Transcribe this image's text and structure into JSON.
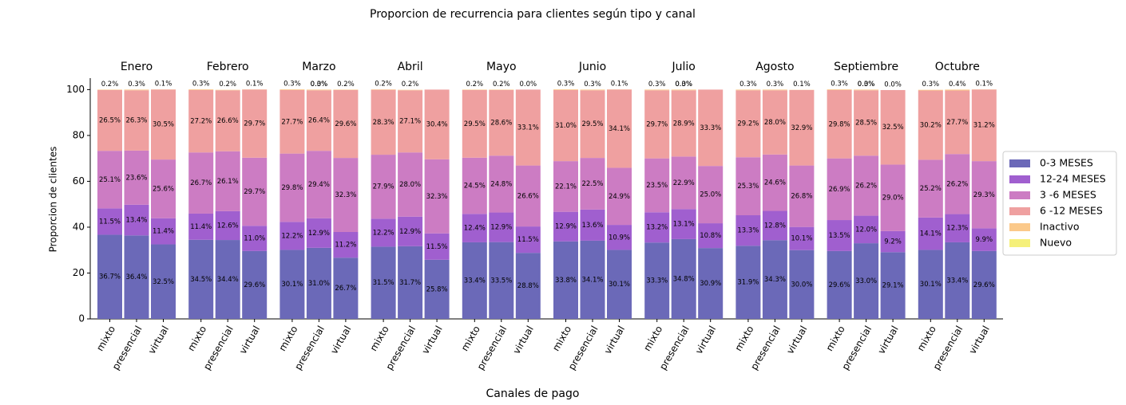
{
  "chart_data": {
    "type": "stacked_bar",
    "title": "Proporcion de recurrencia para clientes según tipo y canal",
    "x_label": "Canales de pago",
    "y_label": "Proporcion de clientes",
    "groups": [
      "Enero",
      "Febrero",
      "Marzo",
      "Abril",
      "Mayo",
      "Junio",
      "Julio",
      "Agosto",
      "Septiembre",
      "Octubre"
    ],
    "categories": [
      "mixto",
      "presencial",
      "virtual"
    ],
    "ylim": [
      0,
      105
    ],
    "yticks": [
      0,
      20,
      40,
      60,
      80,
      100
    ],
    "legend": "right",
    "series": [
      {
        "name": "0-3 MESES",
        "color": "#6b69b8",
        "values": [
          [
            36.7,
            36.4,
            32.5
          ],
          [
            34.5,
            34.4,
            29.6
          ],
          [
            30.1,
            31.0,
            26.7
          ],
          [
            31.5,
            31.7,
            25.8
          ],
          [
            33.4,
            33.5,
            28.8
          ],
          [
            33.8,
            34.1,
            30.1
          ],
          [
            33.3,
            34.8,
            30.9
          ],
          [
            31.9,
            34.3,
            30.0
          ],
          [
            29.6,
            33.0,
            29.1
          ],
          [
            30.1,
            33.4,
            29.6
          ]
        ],
        "value_labels": [
          [
            "36.7%",
            "36.4%",
            "32.5%"
          ],
          [
            "34.5%",
            "34.4%",
            "29.6%"
          ],
          [
            "30.1%",
            "31.0%",
            "26.7%"
          ],
          [
            "31.5%",
            "31.7%",
            "25.8%"
          ],
          [
            "33.4%",
            "33.5%",
            "28.8%"
          ],
          [
            "33.8%",
            "34.1%",
            "30.1%"
          ],
          [
            "33.3%",
            "34.8%",
            "30.9%"
          ],
          [
            "31.9%",
            "34.3%",
            "30.0%"
          ],
          [
            "29.6%",
            "33.0%",
            "29.1%"
          ],
          [
            "30.1%",
            "33.4%",
            "29.6%"
          ]
        ]
      },
      {
        "name": "12-24 MESES",
        "color": "#a05fcf",
        "values": [
          [
            11.5,
            13.4,
            11.4
          ],
          [
            11.4,
            12.6,
            11.0
          ],
          [
            12.2,
            12.9,
            11.2
          ],
          [
            12.2,
            12.9,
            11.5
          ],
          [
            12.4,
            12.9,
            11.5
          ],
          [
            12.9,
            13.6,
            10.9
          ],
          [
            13.2,
            13.1,
            10.8
          ],
          [
            13.3,
            12.8,
            10.1
          ],
          [
            13.5,
            12.0,
            9.2
          ],
          [
            14.1,
            12.3,
            9.9
          ]
        ],
        "value_labels": [
          [
            "11.5%",
            "13.4%",
            "11.4%"
          ],
          [
            "11.4%",
            "12.6%",
            "11.0%"
          ],
          [
            "12.2%",
            "12.9%",
            "11.2%"
          ],
          [
            "12.2%",
            "12.9%",
            "11.5%"
          ],
          [
            "12.4%",
            "12.9%",
            "11.5%"
          ],
          [
            "12.9%",
            "13.6%",
            "10.9%"
          ],
          [
            "13.2%",
            "13.1%",
            "10.8%"
          ],
          [
            "13.3%",
            "12.8%",
            "10.1%"
          ],
          [
            "13.5%",
            "12.0%",
            "9.2%"
          ],
          [
            "14.1%",
            "12.3%",
            "9.9%"
          ]
        ]
      },
      {
        "name": "3 -6 MESES",
        "color": "#cc7cc3",
        "values": [
          [
            25.1,
            23.6,
            25.6
          ],
          [
            26.7,
            26.1,
            29.7
          ],
          [
            29.8,
            29.4,
            32.3
          ],
          [
            27.9,
            28.0,
            32.3
          ],
          [
            24.5,
            24.8,
            26.6
          ],
          [
            22.1,
            22.5,
            24.9
          ],
          [
            23.5,
            22.9,
            25.0
          ],
          [
            25.3,
            24.6,
            26.8
          ],
          [
            26.9,
            26.2,
            29.0
          ],
          [
            25.2,
            26.2,
            29.3
          ]
        ],
        "value_labels": [
          [
            "25.1%",
            "23.6%",
            "25.6%"
          ],
          [
            "26.7%",
            "26.1%",
            "29.7%"
          ],
          [
            "29.8%",
            "29.4%",
            "32.3%"
          ],
          [
            "27.9%",
            "28.0%",
            "32.3%"
          ],
          [
            "24.5%",
            "24.8%",
            "26.6%"
          ],
          [
            "22.1%",
            "22.5%",
            "24.9%"
          ],
          [
            "23.5%",
            "22.9%",
            "25.0%"
          ],
          [
            "25.3%",
            "24.6%",
            "26.8%"
          ],
          [
            "26.9%",
            "26.2%",
            "29.0%"
          ],
          [
            "25.2%",
            "26.2%",
            "29.3%"
          ]
        ]
      },
      {
        "name": "6 -12 MESES",
        "color": "#efa0a0",
        "values": [
          [
            26.5,
            26.3,
            30.5
          ],
          [
            27.2,
            26.6,
            29.7
          ],
          [
            27.7,
            26.4,
            29.6
          ],
          [
            28.3,
            27.1,
            30.4
          ],
          [
            29.5,
            28.6,
            33.1
          ],
          [
            31.0,
            29.5,
            34.1
          ],
          [
            29.7,
            28.9,
            33.3
          ],
          [
            29.2,
            28.0,
            32.9
          ],
          [
            29.8,
            28.5,
            32.5
          ],
          [
            30.2,
            27.7,
            31.2
          ]
        ],
        "value_labels": [
          [
            "26.5%",
            "26.3%",
            "30.5%"
          ],
          [
            "27.2%",
            "26.6%",
            "29.7%"
          ],
          [
            "27.7%",
            "26.4%",
            "29.6%"
          ],
          [
            "28.3%",
            "27.1%",
            "30.4%"
          ],
          [
            "29.5%",
            "28.6%",
            "33.1%"
          ],
          [
            "31.0%",
            "29.5%",
            "34.1%"
          ],
          [
            "29.7%",
            "28.9%",
            "33.3%"
          ],
          [
            "29.2%",
            "28.0%",
            "32.9%"
          ],
          [
            "29.8%",
            "28.5%",
            "32.5%"
          ],
          [
            "30.2%",
            "27.7%",
            "31.2%"
          ]
        ]
      },
      {
        "name": "Inactivo",
        "color": "#fbc98a",
        "values": [
          [
            0.2,
            0.3,
            0.1
          ],
          [
            0.3,
            0.2,
            0.1
          ],
          [
            0.3,
            0.3,
            0.2
          ],
          [
            0.2,
            0.2,
            null
          ],
          [
            0.2,
            0.2,
            0.0
          ],
          [
            0.3,
            0.3,
            0.1
          ],
          [
            0.3,
            0.3,
            null
          ],
          [
            0.3,
            0.3,
            0.1
          ],
          [
            0.3,
            0.3,
            0.0
          ],
          [
            0.3,
            0.4,
            0.1
          ]
        ],
        "value_labels": [
          [
            "0.2%",
            "0.3%",
            "0.1%"
          ],
          [
            "0.3%",
            "0.2%",
            "0.1%"
          ],
          [
            "0.3%",
            "0.3%",
            "0.2%"
          ],
          [
            "0.2%",
            "0.2%",
            null
          ],
          [
            "0.2%",
            "0.2%",
            "0.0%"
          ],
          [
            "0.3%",
            "0.3%",
            "0.1%"
          ],
          [
            "0.3%",
            "0.3%",
            null
          ],
          [
            "0.3%",
            "0.3%",
            "0.1%"
          ],
          [
            "0.3%",
            "0.3%",
            "0.0%"
          ],
          [
            "0.3%",
            "0.4%",
            "0.1%"
          ]
        ]
      },
      {
        "name": "Nuevo",
        "color": "#f5f07a",
        "values": [
          [
            null,
            null,
            null
          ],
          [
            null,
            null,
            null
          ],
          [
            null,
            0.0,
            null
          ],
          [
            null,
            null,
            null
          ],
          [
            null,
            null,
            null
          ],
          [
            null,
            null,
            null
          ],
          [
            null,
            0.0,
            null
          ],
          [
            null,
            null,
            null
          ],
          [
            null,
            0.0,
            null
          ],
          [
            null,
            null,
            null
          ]
        ],
        "value_labels": [
          [
            null,
            null,
            null
          ],
          [
            null,
            null,
            null
          ],
          [
            null,
            "0.0%",
            null
          ],
          [
            null,
            null,
            null
          ],
          [
            null,
            null,
            null
          ],
          [
            null,
            null,
            null
          ],
          [
            null,
            "0.0%",
            null
          ],
          [
            null,
            null,
            null
          ],
          [
            null,
            "0.0%",
            null
          ],
          [
            null,
            null,
            null
          ]
        ]
      }
    ]
  }
}
